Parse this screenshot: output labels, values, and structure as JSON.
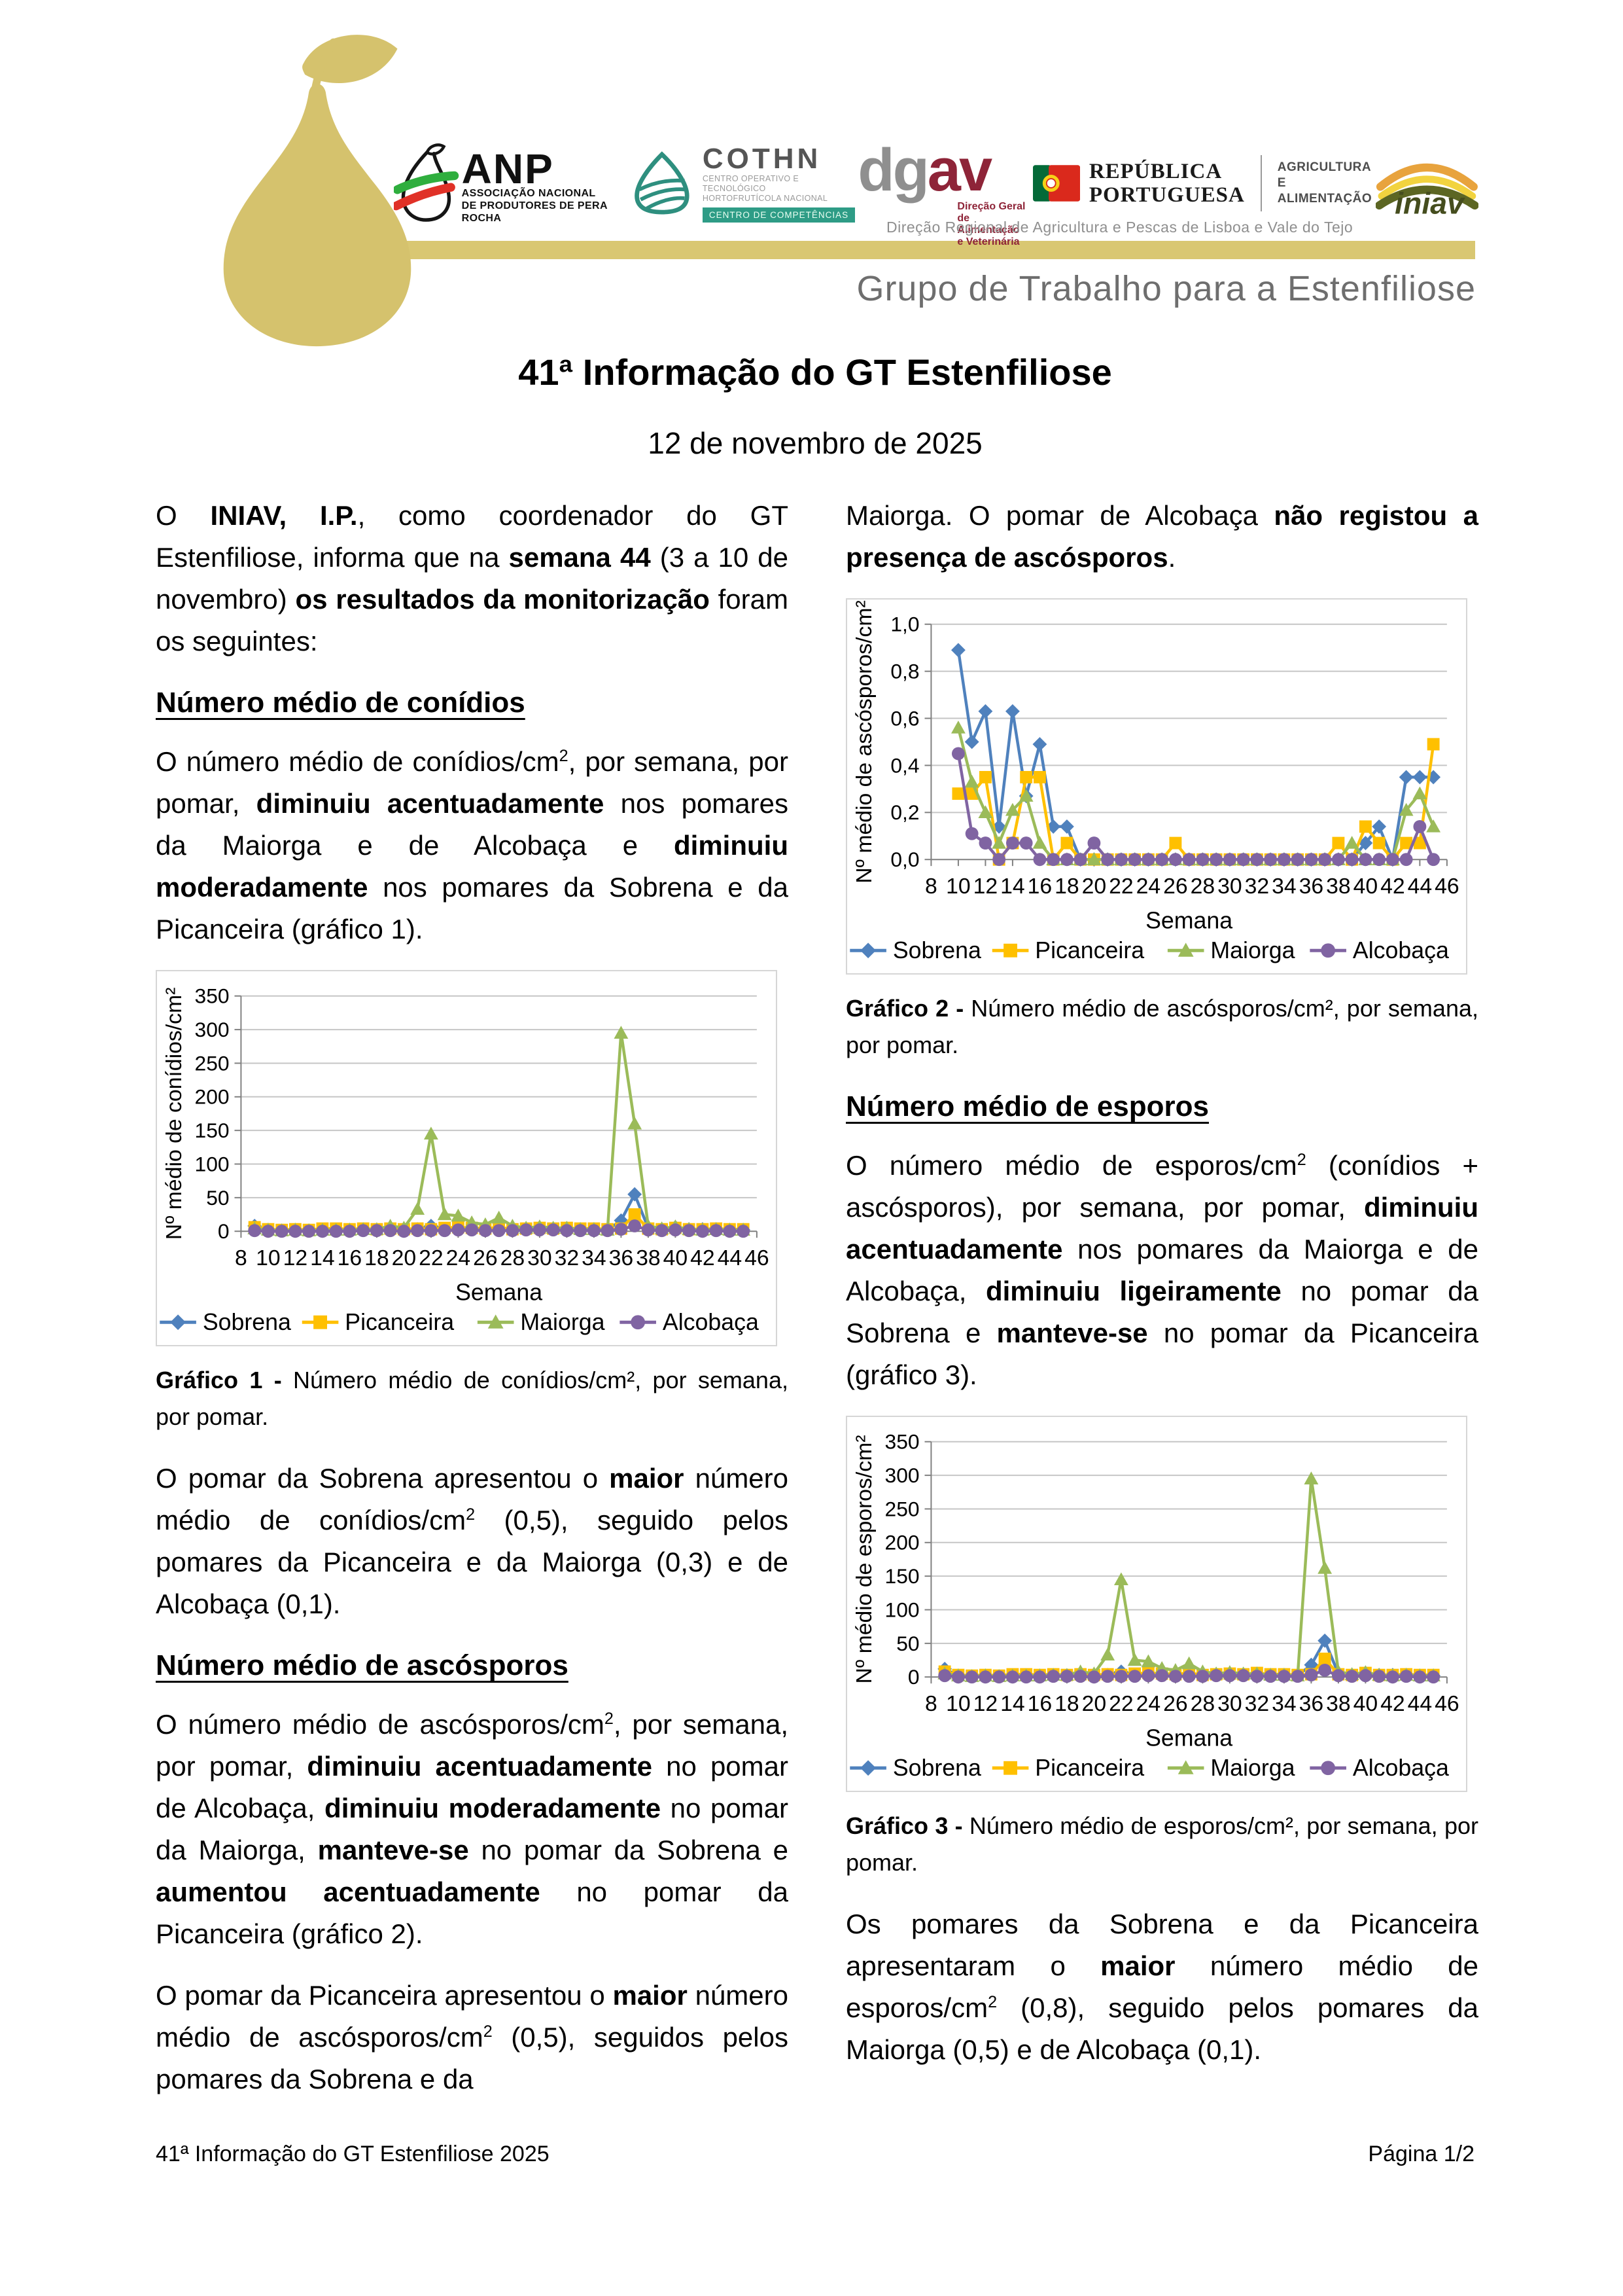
{
  "header": {
    "banner": "Grupo de Trabalho para a Estenfiliose",
    "drap": "Direção Regional de Agricultura e Pescas de Lisboa e Vale do Tejo",
    "anp": {
      "acronym": "ANP",
      "line1": "ASSOCIAÇÃO NACIONAL",
      "line2": "DE PRODUTORES DE PERA ROCHA"
    },
    "cothn": {
      "acronym": "COTHN",
      "line1": "CENTRO OPERATIVO E TECNOLÓGICO",
      "line2": "HORTOFRUTÍCOLA NACIONAL",
      "badge": "CENTRO DE COMPETÊNCIAS"
    },
    "dgav": {
      "part1": "dg",
      "part2": "av",
      "line1": "Direção Geral",
      "line2": "de Alimentação",
      "line3": "e Veterinária"
    },
    "republica": {
      "line1": "REPÚBLICA",
      "line2": "PORTUGUESA",
      "right1": "AGRICULTURA",
      "right2": "E ALIMENTAÇÃO"
    },
    "iniav": {
      "name": "iniav"
    }
  },
  "title": "41ª Informação do GT Estenfiliose",
  "subtitle": "12 de novembro de 2025",
  "left": {
    "p1": [
      {
        "t": "O "
      },
      {
        "t": "INIAV, I.P.",
        "b": true
      },
      {
        "t": ", como coordenador do GT Estenfiliose, informa que na "
      },
      {
        "t": "semana 44",
        "b": true
      },
      {
        "t": " (3 a 10 de novembro) "
      },
      {
        "t": "os resultados da monitorização",
        "b": true
      },
      {
        "t": " foram os seguintes:"
      }
    ],
    "h1": "Número médio de conídios",
    "p2": [
      {
        "t": "O número médio de conídios/cm"
      },
      {
        "t": "2",
        "sup": true
      },
      {
        "t": ", por semana, por pomar, "
      },
      {
        "t": "diminuiu acentuadamente",
        "b": true
      },
      {
        "t": " nos pomares da Maiorga e de Alcobaça e "
      },
      {
        "t": "diminuiu moderadamente",
        "b": true
      },
      {
        "t": " nos pomares da Sobrena e da Picanceira (gráfico 1)."
      }
    ],
    "caption1": [
      {
        "t": "Gráfico 1 - ",
        "b": true
      },
      {
        "t": "Número médio de conídios/cm², por semana, por pomar."
      }
    ],
    "p3": [
      {
        "t": "O pomar da Sobrena apresentou o "
      },
      {
        "t": "maior",
        "b": true
      },
      {
        "t": " número médio de conídios/cm"
      },
      {
        "t": "2",
        "sup": true
      },
      {
        "t": " (0,5), seguido pelos pomares da Picanceira e da Maiorga (0,3) e de Alcobaça (0,1)."
      }
    ],
    "h2": "Número médio de ascósporos",
    "p4": [
      {
        "t": "O número médio de ascósporos/cm"
      },
      {
        "t": "2",
        "sup": true
      },
      {
        "t": ", por semana, por pomar, "
      },
      {
        "t": "diminuiu acentuadamente",
        "b": true
      },
      {
        "t": " no pomar de Alcobaça, "
      },
      {
        "t": "diminuiu moderadamente",
        "b": true
      },
      {
        "t": " no pomar da Maiorga, "
      },
      {
        "t": "manteve-se",
        "b": true
      },
      {
        "t": " no pomar da Sobrena e "
      },
      {
        "t": "aumentou acentuadamente",
        "b": true
      },
      {
        "t": " no pomar da Picanceira (gráfico 2)."
      }
    ],
    "p5": [
      {
        "t": "O pomar da Picanceira apresentou o "
      },
      {
        "t": "maior",
        "b": true
      },
      {
        "t": " número médio de ascósporos/cm"
      },
      {
        "t": "2",
        "sup": true
      },
      {
        "t": " (0,5), seguidos pelos pomares da Sobrena e da"
      }
    ]
  },
  "right": {
    "p1": [
      {
        "t": "Maiorga. O pomar de Alcobaça "
      },
      {
        "t": "não registou a presença de ascósporos",
        "b": true
      },
      {
        "t": "."
      }
    ],
    "caption2": [
      {
        "t": "Gráfico 2 - ",
        "b": true
      },
      {
        "t": "Número médio de ascósporos/cm², por semana, por pomar."
      }
    ],
    "h1": "Número médio de esporos",
    "p2": [
      {
        "t": "O número médio de esporos/cm"
      },
      {
        "t": "2",
        "sup": true
      },
      {
        "t": " (conídios + ascósporos), por semana, por pomar, "
      },
      {
        "t": "diminuiu acentuadamente",
        "b": true
      },
      {
        "t": " nos pomares da Maiorga e de Alcobaça, "
      },
      {
        "t": "diminuiu ligeiramente",
        "b": true
      },
      {
        "t": " no pomar da Sobrena e "
      },
      {
        "t": "manteve-se",
        "b": true
      },
      {
        "t": " no pomar da Picanceira (gráfico 3)."
      }
    ],
    "caption3": [
      {
        "t": "Gráfico 3 - ",
        "b": true
      },
      {
        "t": "Número médio de esporos/cm², por semana, por pomar."
      }
    ],
    "p3": [
      {
        "t": "Os pomares da Sobrena e da Picanceira apresentaram o "
      },
      {
        "t": "maior",
        "b": true
      },
      {
        "t": " número médio de esporos/cm"
      },
      {
        "t": "2",
        "sup": true
      },
      {
        "t": " (0,8), seguido pelos pomares da Maiorga (0,5) e de Alcobaça (0,1)."
      }
    ]
  },
  "footer": {
    "left": "41ª Informação do GT Estenfiliose 2025",
    "right": "Página 1/2"
  },
  "colors": {
    "accent_bar": "#d9c772",
    "pear": "#d5c26d",
    "banner_text": "#6e6e6e",
    "sobrena": "#4F81BD",
    "picanceira": "#FFC000",
    "maiorga": "#9BBB59",
    "alcobaca": "#8064A2"
  },
  "chart_data": [
    {
      "type": "line",
      "ylabel": "Nº médio de conídios/cm²",
      "xlabel": "Semana",
      "ylim": [
        0,
        350
      ],
      "xlim": [
        8,
        46
      ],
      "grid": true,
      "legend_position": "bottom",
      "yticks": [
        {
          "v": 0,
          "label": "0"
        },
        {
          "v": 50,
          "label": "50"
        },
        {
          "v": 100,
          "label": "100"
        },
        {
          "v": 150,
          "label": "150"
        },
        {
          "v": 200,
          "label": "200"
        },
        {
          "v": 250,
          "label": "250"
        },
        {
          "v": 300,
          "label": "300"
        },
        {
          "v": 350,
          "label": "350"
        }
      ],
      "xticks": [
        8,
        10,
        12,
        14,
        16,
        18,
        20,
        22,
        24,
        26,
        28,
        30,
        32,
        34,
        36,
        38,
        40,
        42,
        44,
        46
      ],
      "series": [
        {
          "name": "Sobrena",
          "color": "#4F81BD",
          "marker": "diamond",
          "x_start": 9,
          "values": [
            8,
            2,
            1,
            2,
            1,
            2,
            1,
            2,
            2,
            2,
            2,
            2,
            3,
            8,
            3,
            4,
            4,
            3,
            3,
            2,
            3,
            4,
            4,
            4,
            3,
            3,
            2,
            16,
            55,
            5,
            3,
            6,
            3,
            3,
            3,
            2,
            2
          ]
        },
        {
          "name": "Picanceira",
          "color": "#FFC000",
          "marker": "square",
          "x_start": 9,
          "values": [
            6,
            3,
            2,
            3,
            2,
            4,
            4,
            3,
            4,
            3,
            4,
            3,
            4,
            3,
            5,
            6,
            5,
            4,
            6,
            3,
            4,
            5,
            4,
            5,
            4,
            4,
            3,
            4,
            25,
            4,
            3,
            5,
            3,
            3,
            4,
            3,
            3
          ]
        },
        {
          "name": "Maiorga",
          "color": "#9BBB59",
          "marker": "triangle",
          "x_start": 9,
          "values": [
            4,
            2,
            1,
            2,
            1,
            2,
            2,
            2,
            3,
            3,
            8,
            5,
            33,
            145,
            25,
            23,
            13,
            10,
            20,
            8,
            5,
            7,
            5,
            5,
            3,
            3,
            2,
            295,
            160,
            8,
            4,
            7,
            3,
            2,
            3,
            2,
            2
          ]
        },
        {
          "name": "Alcobaça",
          "color": "#8064A2",
          "marker": "circle",
          "x_start": 9,
          "values": [
            1,
            0,
            0,
            0,
            0,
            0,
            0,
            0,
            1,
            1,
            1,
            0,
            1,
            1,
            1,
            2,
            2,
            1,
            1,
            1,
            2,
            2,
            2,
            1,
            1,
            1,
            1,
            3,
            8,
            2,
            1,
            2,
            1,
            0,
            1,
            0,
            0
          ]
        }
      ]
    },
    {
      "type": "line",
      "ylabel": "Nº médio de ascósporos/cm²",
      "xlabel": "Semana",
      "ylim": [
        0,
        1.0
      ],
      "xlim": [
        8,
        46
      ],
      "grid": true,
      "legend_position": "bottom",
      "yticks": [
        {
          "v": 0,
          "label": "0,0"
        },
        {
          "v": 0.2,
          "label": "0,2"
        },
        {
          "v": 0.4,
          "label": "0,4"
        },
        {
          "v": 0.6,
          "label": "0,6"
        },
        {
          "v": 0.8,
          "label": "0,8"
        },
        {
          "v": 1.0,
          "label": "1,0"
        }
      ],
      "xticks": [
        8,
        10,
        12,
        14,
        16,
        18,
        20,
        22,
        24,
        26,
        28,
        30,
        32,
        34,
        36,
        38,
        40,
        42,
        44,
        46
      ],
      "series": [
        {
          "name": "Sobrena",
          "color": "#4F81BD",
          "marker": "diamond",
          "x_start": 10,
          "values": [
            0.89,
            0.5,
            0.63,
            0.14,
            0.63,
            0.27,
            0.49,
            0.14,
            0.14,
            0,
            0,
            0,
            0,
            0,
            0,
            0,
            0,
            0,
            0,
            0,
            0,
            0,
            0,
            0,
            0,
            0,
            0,
            0,
            0,
            0,
            0.07,
            0.14,
            0,
            0.35,
            0.35,
            0.35
          ]
        },
        {
          "name": "Picanceira",
          "color": "#FFC000",
          "marker": "square",
          "x_start": 10,
          "values": [
            0.28,
            0.28,
            0.35,
            0,
            0.07,
            0.35,
            0.35,
            0,
            0.07,
            0,
            0,
            0,
            0,
            0,
            0,
            0,
            0.07,
            0,
            0,
            0,
            0,
            0,
            0,
            0,
            0,
            0,
            0,
            0,
            0.07,
            0,
            0.14,
            0.07,
            0,
            0.07,
            0.07,
            0.49
          ]
        },
        {
          "name": "Maiorga",
          "color": "#9BBB59",
          "marker": "triangle",
          "x_start": 10,
          "values": [
            0.56,
            0.33,
            0.2,
            0.07,
            0.21,
            0.27,
            0.07,
            0,
            0,
            0,
            0,
            0,
            0,
            0,
            0,
            0,
            0,
            0,
            0,
            0,
            0,
            0,
            0,
            0,
            0,
            0,
            0,
            0,
            0,
            0.07,
            0,
            0,
            0,
            0.21,
            0.28,
            0.14
          ]
        },
        {
          "name": "Alcobaça",
          "color": "#8064A2",
          "marker": "circle",
          "x_start": 10,
          "values": [
            0.45,
            0.11,
            0.07,
            0,
            0.07,
            0.07,
            0,
            0,
            0,
            0,
            0.07,
            0,
            0,
            0,
            0,
            0,
            0,
            0,
            0,
            0,
            0,
            0,
            0,
            0,
            0,
            0,
            0,
            0,
            0,
            0,
            0,
            0,
            0,
            0,
            0.14,
            0
          ]
        }
      ]
    },
    {
      "type": "line",
      "ylabel": "Nº médio de esporos/cm²",
      "xlabel": "Semana",
      "ylim": [
        0,
        350
      ],
      "xlim": [
        8,
        46
      ],
      "grid": true,
      "legend_position": "bottom",
      "yticks": [
        {
          "v": 0,
          "label": "0"
        },
        {
          "v": 50,
          "label": "50"
        },
        {
          "v": 100,
          "label": "100"
        },
        {
          "v": 150,
          "label": "150"
        },
        {
          "v": 200,
          "label": "200"
        },
        {
          "v": 250,
          "label": "250"
        },
        {
          "v": 300,
          "label": "300"
        },
        {
          "v": 350,
          "label": "350"
        }
      ],
      "xticks": [
        8,
        10,
        12,
        14,
        16,
        18,
        20,
        22,
        24,
        26,
        28,
        30,
        32,
        34,
        36,
        38,
        40,
        42,
        44,
        46
      ],
      "series": [
        {
          "name": "Sobrena",
          "color": "#4F81BD",
          "marker": "diamond",
          "x_start": 9,
          "values": [
            12,
            2,
            1,
            2,
            1,
            2,
            1,
            2,
            2,
            2,
            2,
            2,
            3,
            8,
            3,
            5,
            4,
            3,
            3,
            2,
            3,
            4,
            4,
            4,
            3,
            3,
            2,
            18,
            54,
            5,
            3,
            6,
            3,
            3,
            3,
            2,
            2
          ]
        },
        {
          "name": "Picanceira",
          "color": "#FFC000",
          "marker": "square",
          "x_start": 9,
          "values": [
            8,
            3,
            2,
            3,
            2,
            4,
            4,
            3,
            4,
            3,
            4,
            3,
            4,
            3,
            5,
            6,
            5,
            4,
            6,
            3,
            4,
            5,
            4,
            6,
            4,
            4,
            3,
            4,
            27,
            4,
            3,
            6,
            3,
            3,
            4,
            3,
            3
          ]
        },
        {
          "name": "Maiorga",
          "color": "#9BBB59",
          "marker": "triangle",
          "x_start": 9,
          "values": [
            5,
            2,
            1,
            2,
            1,
            2,
            2,
            2,
            3,
            3,
            8,
            5,
            33,
            145,
            25,
            23,
            13,
            10,
            20,
            8,
            5,
            7,
            5,
            5,
            3,
            3,
            2,
            295,
            162,
            8,
            4,
            7,
            3,
            2,
            3,
            2,
            2
          ]
        },
        {
          "name": "Alcobaça",
          "color": "#8064A2",
          "marker": "circle",
          "x_start": 9,
          "values": [
            2,
            0,
            0,
            0,
            0,
            0,
            0,
            0,
            1,
            1,
            1,
            0,
            1,
            1,
            1,
            2,
            2,
            1,
            1,
            1,
            2,
            2,
            2,
            1,
            1,
            1,
            1,
            3,
            10,
            2,
            1,
            2,
            1,
            0,
            1,
            0,
            0
          ]
        }
      ]
    }
  ]
}
